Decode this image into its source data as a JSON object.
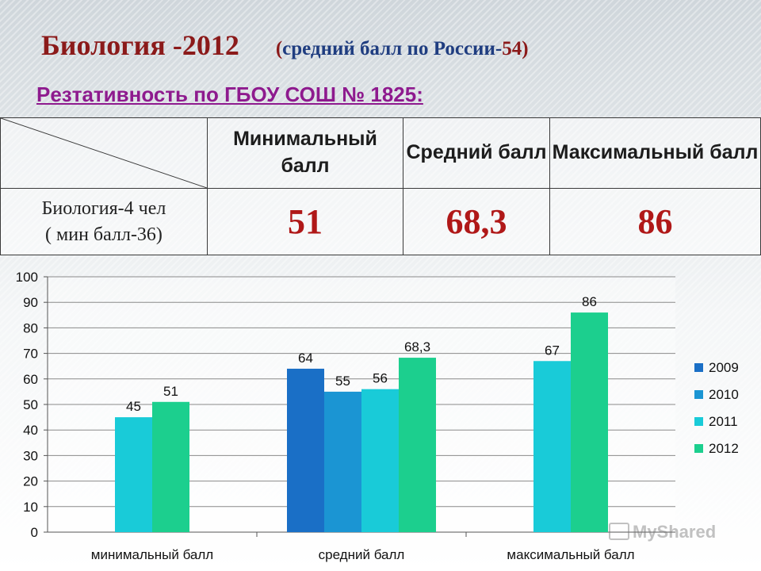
{
  "header": {
    "title": "Биология -2012",
    "subtitle_open": "(",
    "subtitle_text": "средний балл по России-",
    "subtitle_value": "54",
    "subtitle_close": ")"
  },
  "subtitle": "Рeзтативность по ГБОУ СОШ № 1825:",
  "summary_table": {
    "columns": [
      "Минимальный балл",
      "Средний балл",
      "Максимальный балл"
    ],
    "row_label_line1": "Биология-4 чел",
    "row_label_line2": "( мин балл-36)",
    "values": [
      "51",
      "68,3",
      "86"
    ]
  },
  "watermark": "MyShared",
  "colors": {
    "title": "#8b1a1a",
    "subtitle": "#8e1a8e",
    "values": "#b01818"
  },
  "chart_data": {
    "type": "bar",
    "categories": [
      "минимальный балл",
      "средний балл",
      "максимальный балл"
    ],
    "series": [
      {
        "name": "2009",
        "color": "#1a6fc6",
        "values": [
          null,
          64,
          null
        ],
        "labels": [
          null,
          "64",
          null
        ]
      },
      {
        "name": "2010",
        "color": "#1b95d3",
        "values": [
          null,
          55,
          null
        ],
        "labels": [
          null,
          "55",
          null
        ]
      },
      {
        "name": "2011",
        "color": "#19cbd8",
        "values": [
          45,
          56,
          67
        ],
        "labels": [
          "45",
          "56",
          "67"
        ]
      },
      {
        "name": "2012",
        "color": "#1ccf8e",
        "values": [
          51,
          68.3,
          86
        ],
        "labels": [
          "51",
          "68,3",
          "86"
        ]
      }
    ],
    "ylim": [
      0,
      100
    ],
    "yticks": [
      0,
      10,
      20,
      30,
      40,
      50,
      60,
      70,
      80,
      90,
      100
    ],
    "grid": true,
    "legend": "right"
  }
}
